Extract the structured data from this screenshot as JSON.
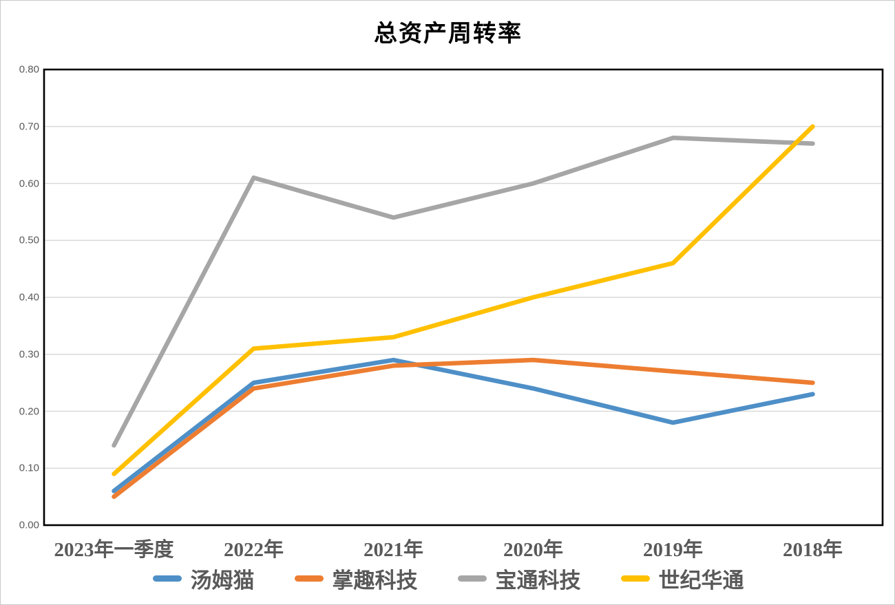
{
  "chart_data": {
    "type": "line",
    "title": "总资产周转率",
    "categories": [
      "2023年一季度",
      "2022年",
      "2021年",
      "2020年",
      "2019年",
      "2018年"
    ],
    "series": [
      {
        "name": "汤姆猫",
        "color": "#4E8FC7",
        "values": [
          0.06,
          0.25,
          0.29,
          0.24,
          0.18,
          0.23
        ]
      },
      {
        "name": "掌趣科技",
        "color": "#ED7D31",
        "values": [
          0.05,
          0.24,
          0.28,
          0.29,
          0.27,
          0.25
        ]
      },
      {
        "name": "宝通科技",
        "color": "#A6A6A6",
        "values": [
          0.14,
          0.61,
          0.54,
          0.6,
          0.68,
          0.67
        ]
      },
      {
        "name": "世纪华通",
        "color": "#FFC000",
        "values": [
          0.09,
          0.31,
          0.33,
          0.4,
          0.46,
          0.7
        ]
      }
    ],
    "ylim": [
      0.0,
      0.8
    ],
    "y_ticks": [
      "0.00",
      "0.10",
      "0.20",
      "0.30",
      "0.40",
      "0.50",
      "0.60",
      "0.70",
      "0.80"
    ],
    "grid": true,
    "legend_position": "bottom",
    "colors": {
      "axis_border": "#000000",
      "gridline": "#D9D9D9",
      "tick_label": "#595959",
      "category_label": "#595959",
      "title": "#000000",
      "background": "#FFFFFF"
    }
  }
}
